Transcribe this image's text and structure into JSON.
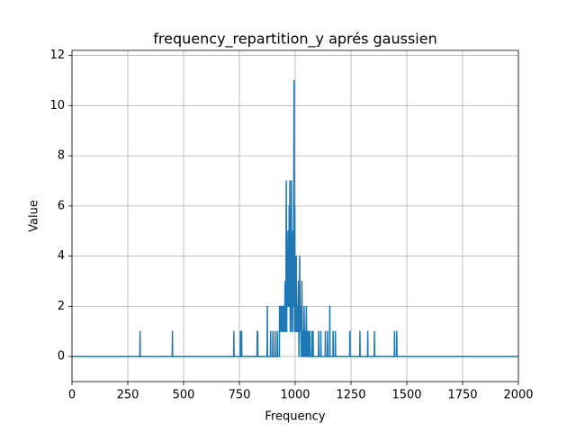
{
  "chart_data": {
    "type": "line",
    "title": "frequency_repartition_y aprés gaussien",
    "xlabel": "Frequency",
    "ylabel": "Value",
    "color": "#1f77b4",
    "grid": true,
    "x": [
      0,
      304,
      305,
      306,
      449,
      450,
      451,
      724,
      725,
      726,
      754,
      755,
      756,
      759,
      760,
      761,
      829,
      830,
      831,
      832,
      833,
      874,
      875,
      876,
      889,
      890,
      891,
      899,
      900,
      901,
      909,
      910,
      911,
      919,
      920,
      921,
      929,
      930,
      932,
      935,
      938,
      940,
      942,
      945,
      948,
      950,
      952,
      955,
      958,
      960,
      962,
      963,
      965,
      966,
      968,
      970,
      972,
      973,
      975,
      976,
      978,
      980,
      982,
      983,
      985,
      986,
      988,
      990,
      992,
      995,
      997,
      998,
      1000,
      1002,
      1004,
      1005,
      1007,
      1010,
      1012,
      1015,
      1017,
      1020,
      1022,
      1025,
      1027,
      1030,
      1032,
      1035,
      1037,
      1040,
      1042,
      1045,
      1047,
      1050,
      1052,
      1055,
      1057,
      1060,
      1062,
      1065,
      1067,
      1074,
      1075,
      1076,
      1079,
      1080,
      1081,
      1104,
      1105,
      1106,
      1114,
      1115,
      1116,
      1134,
      1135,
      1136,
      1144,
      1145,
      1146,
      1154,
      1155,
      1156,
      1169,
      1170,
      1171,
      1179,
      1180,
      1181,
      1244,
      1245,
      1246,
      1289,
      1290,
      1291,
      1324,
      1325,
      1326,
      1354,
      1355,
      1356,
      1444,
      1445,
      1446,
      1454,
      1455,
      1456,
      2000
    ],
    "values": [
      0,
      0,
      1,
      0,
      0,
      1,
      0,
      0,
      1,
      0,
      0,
      1,
      0,
      0,
      1,
      0,
      0,
      1,
      0,
      1,
      0,
      0,
      2,
      0,
      0,
      1,
      0,
      0,
      1,
      0,
      0,
      1,
      0,
      0,
      1,
      0,
      0,
      2,
      1,
      2,
      1,
      2,
      1,
      2,
      1,
      2,
      1,
      3,
      1,
      7,
      1,
      5,
      2,
      4,
      2,
      5,
      2,
      6,
      2,
      7,
      1,
      4,
      2,
      7,
      1,
      3,
      1,
      5,
      2,
      11,
      1,
      6,
      1,
      3,
      1,
      4,
      1,
      2,
      1,
      3,
      0,
      4,
      1,
      2,
      0,
      3,
      0,
      1,
      0,
      2,
      0,
      1,
      0,
      2,
      0,
      1,
      0,
      1,
      0,
      1,
      0,
      0,
      1,
      0,
      0,
      1,
      0,
      0,
      1,
      0,
      0,
      1,
      0,
      0,
      1,
      0,
      0,
      1,
      0,
      0,
      2,
      0,
      0,
      1,
      0,
      0,
      1,
      0,
      0,
      1,
      0,
      0,
      1,
      0,
      0,
      1,
      0,
      0,
      1,
      0,
      0,
      1,
      0,
      0,
      1,
      0,
      0
    ],
    "xlim": [
      0,
      2000
    ],
    "ylim": [
      -1.0,
      12.2
    ],
    "xticks": [
      0,
      250,
      500,
      750,
      1000,
      1250,
      1500,
      1750,
      2000
    ],
    "yticks": [
      0,
      2,
      4,
      6,
      8,
      10,
      12
    ]
  }
}
